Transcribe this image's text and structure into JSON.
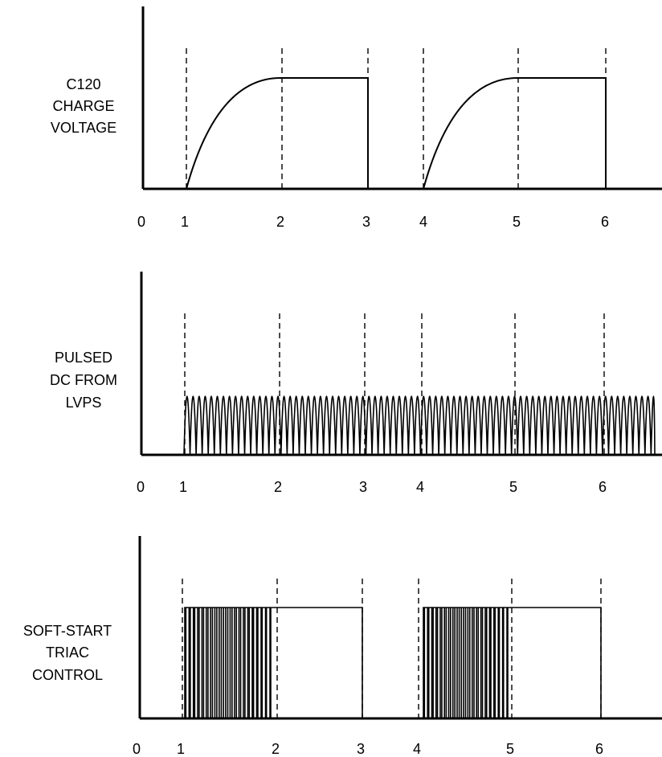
{
  "panels": [
    {
      "id": "c120",
      "label_lines": [
        "C120",
        "CHARGE",
        "VOLTAGE"
      ],
      "ticks": [
        "0",
        "1",
        "2",
        "3",
        "4",
        "5",
        "6"
      ],
      "tick_values": [
        0,
        1,
        2,
        3,
        4,
        5,
        6
      ],
      "dashed_at": [
        1,
        2,
        3,
        4,
        5,
        6
      ]
    },
    {
      "id": "pulsed",
      "label_lines": [
        "PULSED",
        "DC FROM",
        "LVPS"
      ],
      "ticks": [
        "0",
        "1",
        "2",
        "3",
        "4",
        "5",
        "6"
      ],
      "tick_values": [
        0,
        1,
        2,
        3,
        4,
        5,
        6
      ],
      "dashed_at": [
        1,
        2,
        3,
        4,
        5,
        6
      ]
    },
    {
      "id": "triac",
      "label_lines": [
        "SOFT-START",
        "TRIAC",
        "CONTROL"
      ],
      "ticks": [
        "0",
        "1",
        "2",
        "3",
        "4",
        "5",
        "6"
      ],
      "tick_values": [
        0,
        1,
        2,
        3,
        4,
        5,
        6
      ],
      "dashed_at": [
        1,
        2,
        3,
        4,
        5,
        6
      ]
    }
  ],
  "colors": {
    "ink": "#000000",
    "background": "#ffffff"
  }
}
